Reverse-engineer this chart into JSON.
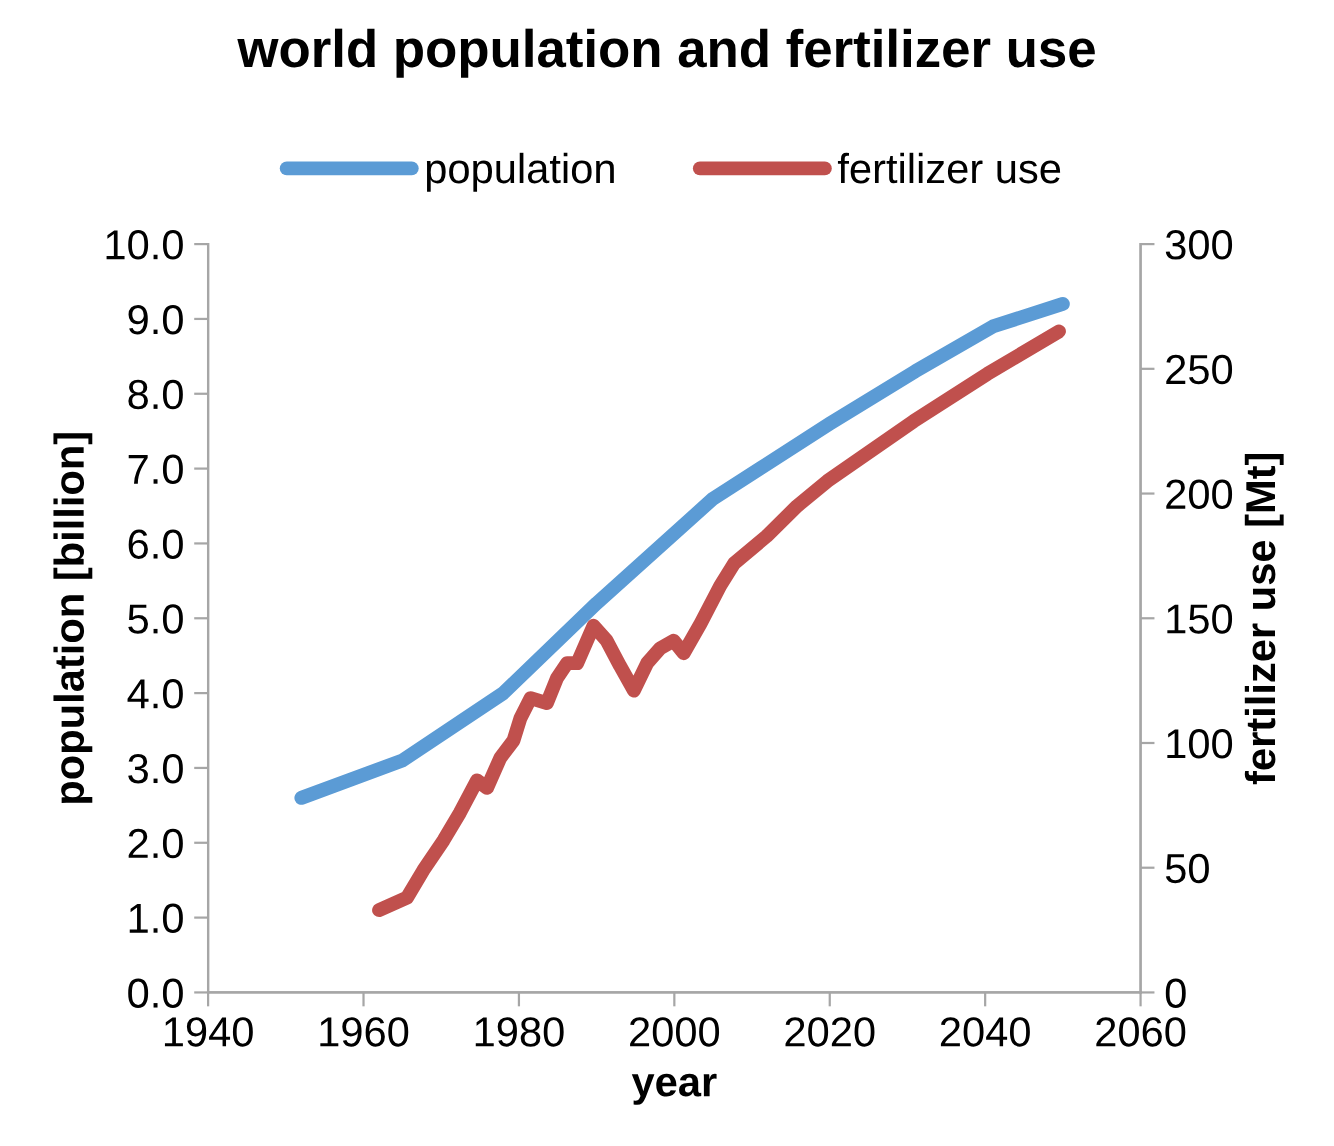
{
  "chart_data": {
    "type": "line",
    "title": "world population and fertilizer use",
    "xlabel": "year",
    "ylabel": "population [billion]",
    "y2label": "fertilizer use [Mt]",
    "xlim": [
      1940,
      2060
    ],
    "xticks": [
      1940,
      1960,
      1980,
      2000,
      2020,
      2040,
      2060
    ],
    "ylim": [
      0,
      10
    ],
    "yticks": [
      {
        "value": 0,
        "label": "0.0"
      },
      {
        "value": 1,
        "label": "1.0"
      },
      {
        "value": 2,
        "label": "2.0"
      },
      {
        "value": 3,
        "label": "3.0"
      },
      {
        "value": 4,
        "label": "4.0"
      },
      {
        "value": 5,
        "label": "5.0"
      },
      {
        "value": 6,
        "label": "6.0"
      },
      {
        "value": 7,
        "label": "7.0"
      },
      {
        "value": 8,
        "label": "8.0"
      },
      {
        "value": 9,
        "label": "9.0"
      },
      {
        "value": 10,
        "label": "10.0"
      }
    ],
    "y2lim": [
      0,
      300
    ],
    "y2ticks": [
      0,
      50,
      100,
      150,
      200,
      250,
      300
    ],
    "legend": "top",
    "grid": false,
    "marker": "none",
    "line_style": "solid",
    "series": [
      {
        "name": "population",
        "color": "#5b9bd5",
        "x": [
          1952,
          1965,
          1978,
          1990,
          2005,
          2011,
          2020,
          2031,
          2041,
          2050
        ],
        "values": [
          2.6,
          3.1,
          4.0,
          5.2,
          6.6,
          7.0,
          7.6,
          8.3,
          8.9,
          9.2
        ]
      },
      {
        "name": "fertilizer use",
        "color": "#c0504d",
        "axis": "y2",
        "x": [
          1962,
          1965.6,
          1967.7,
          1970.3,
          1972.4,
          1974.6,
          1975.9,
          1977.6,
          1979.3,
          1980.2,
          1981.5,
          1983.6,
          1984.9,
          1986.2,
          1987.5,
          1989.6,
          1991.3,
          1993,
          1994.8,
          1996.5,
          1998.2,
          1999.9,
          2001.2,
          2003.4,
          2005.9,
          2007.7,
          2011.9,
          2015.8,
          2019.7,
          2030.8,
          2040.3,
          2049.5
        ],
        "values": [
          33,
          38,
          49,
          61,
          72,
          85,
          82,
          94,
          101,
          110,
          118,
          116,
          126,
          132,
          132,
          147,
          141,
          131,
          121,
          132,
          138,
          141,
          136,
          148,
          163,
          172,
          183,
          195,
          205,
          229,
          248,
          265
        ]
      }
    ]
  }
}
